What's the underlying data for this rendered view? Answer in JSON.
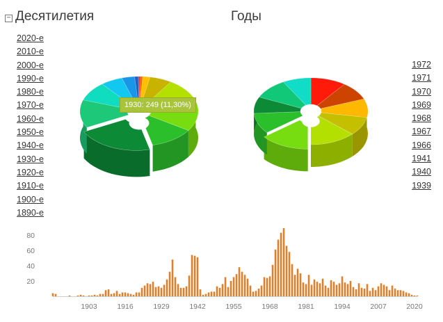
{
  "header": {
    "title": "Десятилетия",
    "collapse_symbol": "−"
  },
  "years_title": "Годы",
  "decades": [
    "2020-е",
    "2010-е",
    "2000-е",
    "1990-е",
    "1980-е",
    "1970-е",
    "1960-е",
    "1950-е",
    "1940-е",
    "1930-е",
    "1920-е",
    "1910-е",
    "1900-е",
    "1890-е"
  ],
  "years": [
    "1972",
    "1971",
    "1970",
    "1969",
    "1968",
    "1967",
    "1966",
    "1941",
    "1940",
    "1939"
  ],
  "tooltip": "1930: 249 (11,30%)",
  "colors": {
    "bar": "#ec7a22",
    "accent_tooltip": "#a9c43a"
  },
  "chart_data": [
    {
      "type": "pie",
      "subtype": "3d-donut",
      "slices": [
        {
          "name": "1890-е",
          "value": 0.4,
          "color": "#e8181c"
        },
        {
          "name": "1900-е",
          "value": 0.6,
          "color": "#f06a00"
        },
        {
          "name": "1910-е",
          "value": 2.0,
          "color": "#ffc000"
        },
        {
          "name": "1920-е",
          "value": 6.0,
          "color": "#c8b400"
        },
        {
          "name": "1930-е",
          "value": 11.3,
          "color": "#b4e000"
        },
        {
          "name": "1940-е",
          "value": 14.0,
          "color": "#78dd10"
        },
        {
          "name": "1950-е",
          "value": 12.0,
          "color": "#2cbf2c"
        },
        {
          "name": "1960-е",
          "value": 21.0,
          "color": "#0d8a36"
        },
        {
          "name": "1970-е",
          "value": 13.0,
          "color": "#1dc878"
        },
        {
          "name": "1980-е",
          "value": 9.0,
          "color": "#10dcc0"
        },
        {
          "name": "1990-е",
          "value": 6.0,
          "color": "#12c8f0"
        },
        {
          "name": "2000-е",
          "value": 3.5,
          "color": "#1a96e8"
        },
        {
          "name": "2010-е",
          "value": 1.0,
          "color": "#2060c0"
        },
        {
          "name": "2020-е",
          "value": 0.2,
          "color": "#6040b0"
        }
      ]
    },
    {
      "type": "pie",
      "subtype": "3d-donut",
      "slices": [
        {
          "name": "1972",
          "value": 10,
          "color": "#ff1a0a"
        },
        {
          "name": "1971",
          "value": 9,
          "color": "#cc4400"
        },
        {
          "name": "1970",
          "value": 9,
          "color": "#ffb800"
        },
        {
          "name": "1969",
          "value": 9,
          "color": "#c4c000"
        },
        {
          "name": "1968",
          "value": 13,
          "color": "#b4e000"
        },
        {
          "name": "1967",
          "value": 14,
          "color": "#78dd10"
        },
        {
          "name": "1966",
          "value": 10,
          "color": "#2cbf2c"
        },
        {
          "name": "1941",
          "value": 8,
          "color": "#0d8a36"
        },
        {
          "name": "1940",
          "value": 10,
          "color": "#10c878"
        },
        {
          "name": "1939",
          "value": 8,
          "color": "#10dcc8"
        }
      ]
    },
    {
      "type": "bar",
      "x_start": 1890,
      "x_end": 2021,
      "values": [
        4,
        3,
        0,
        0,
        0,
        0,
        1,
        0,
        0,
        1,
        2,
        1,
        0,
        1,
        1,
        2,
        1,
        3,
        3,
        8,
        9,
        3,
        4,
        7,
        3,
        5,
        5,
        4,
        3,
        2,
        5,
        5,
        11,
        14,
        17,
        16,
        19,
        12,
        13,
        11,
        15,
        22,
        32,
        48,
        25,
        16,
        11,
        11,
        13,
        27,
        54,
        53,
        51,
        9,
        2,
        3,
        5,
        6,
        6,
        13,
        11,
        16,
        25,
        12,
        20,
        25,
        29,
        38,
        32,
        28,
        23,
        14,
        6,
        7,
        10,
        14,
        25,
        24,
        26,
        41,
        61,
        74,
        83,
        89,
        66,
        58,
        42,
        28,
        36,
        30,
        18,
        16,
        28,
        15,
        22,
        19,
        17,
        23,
        14,
        11,
        21,
        19,
        15,
        17,
        26,
        18,
        16,
        20,
        12,
        9,
        17,
        11,
        10,
        16,
        7,
        11,
        8,
        13,
        17,
        15,
        13,
        8,
        14,
        10,
        8,
        8,
        7,
        5,
        4,
        2,
        1,
        1
      ],
      "y_ticks": [
        20,
        40,
        60,
        80
      ],
      "x_ticks": [
        1903,
        1916,
        1929,
        1942,
        1955,
        1968,
        1981,
        1994,
        2007,
        2020
      ],
      "ylim": [
        0,
        90
      ]
    }
  ]
}
